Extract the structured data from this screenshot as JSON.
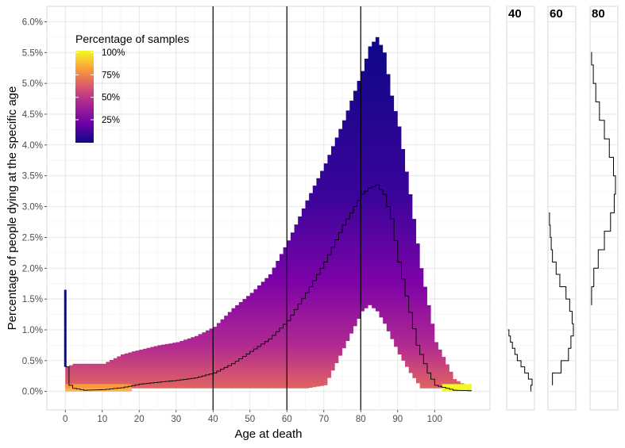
{
  "chart_data": [
    {
      "type": "heatmap",
      "title": "",
      "xlabel": "Age at death",
      "ylabel": "Percentage of people dying at the specific age",
      "xlim": [
        -5,
        115
      ],
      "ylim": [
        -0.3,
        6.25
      ],
      "x_ticks": [
        0,
        10,
        20,
        30,
        40,
        50,
        60,
        70,
        80,
        90,
        100
      ],
      "x_tick_labels": [
        "0",
        "10",
        "20",
        "30",
        "40",
        "50",
        "60",
        "70",
        "80",
        "90",
        "100"
      ],
      "y_ticks": [
        0,
        0.5,
        1,
        1.5,
        2,
        2.5,
        3,
        3.5,
        4,
        4.5,
        5,
        5.5,
        6
      ],
      "y_tick_labels": [
        "0.0%",
        "0.5%",
        "1.0%",
        "1.5%",
        "2.0%",
        "2.5%",
        "3.0%",
        "3.5%",
        "4.0%",
        "4.5%",
        "5.0%",
        "5.5%",
        "6.0%"
      ],
      "vertical_lines": [
        40,
        60,
        80
      ],
      "grid": true,
      "legend": {
        "title": "Percentage of samples",
        "placement": "top-left",
        "labels": [
          "100%",
          "75%",
          "50%",
          "25%"
        ],
        "colors": [
          "#0d0887",
          "#6a00a8",
          "#b12a90",
          "#e16462",
          "#fca636",
          "#f0f921"
        ]
      },
      "envelope": {
        "x": [
          0,
          2,
          10,
          15,
          18,
          25,
          30,
          35,
          40,
          45,
          50,
          55,
          60,
          65,
          70,
          75,
          80,
          82,
          84,
          86,
          88,
          90,
          93,
          96,
          100,
          105,
          108
        ],
        "upper": [
          0.4,
          0.45,
          0.45,
          0.6,
          0.65,
          0.75,
          0.8,
          0.9,
          1.05,
          1.35,
          1.6,
          1.9,
          2.45,
          3.1,
          3.7,
          4.4,
          5.2,
          5.6,
          5.75,
          5.5,
          4.8,
          4.3,
          3.2,
          2.0,
          0.8,
          0.2,
          0.1
        ],
        "lower": [
          0.05,
          0.05,
          0.05,
          0.05,
          0.05,
          0.05,
          0.05,
          0.05,
          0.05,
          0.05,
          0.05,
          0.05,
          0.05,
          0.05,
          0.1,
          0.7,
          1.3,
          1.4,
          1.3,
          1.1,
          0.85,
          0.6,
          0.3,
          0.05,
          0.05,
          0.05,
          0.05
        ],
        "spike": {
          "x": 0,
          "value": 1.65
        }
      },
      "series": [
        {
          "x": [
            0,
            1,
            2,
            5,
            10,
            15,
            20,
            25,
            30,
            35,
            40,
            45,
            50,
            55,
            60,
            65,
            70,
            75,
            78,
            80,
            82,
            84,
            86,
            88,
            90,
            92,
            95,
            98,
            100,
            105,
            110
          ],
          "values": [
            0.4,
            0.1,
            0.05,
            0.02,
            0.03,
            0.06,
            0.12,
            0.15,
            0.18,
            0.22,
            0.3,
            0.45,
            0.65,
            0.85,
            1.15,
            1.6,
            2.1,
            2.7,
            3.0,
            3.2,
            3.3,
            3.35,
            3.2,
            2.8,
            2.1,
            1.55,
            0.75,
            0.3,
            0.1,
            0.02,
            0.01
          ]
        }
      ]
    },
    {
      "type": "line",
      "title": "40",
      "orientation": "horizontal-density",
      "ylim": [
        -0.3,
        6.25
      ],
      "y": [
        0.0,
        0.1,
        0.2,
        0.3,
        0.4,
        0.5,
        0.6,
        0.7,
        0.8,
        0.9,
        1.0
      ],
      "values": [
        0.95,
        1.0,
        0.85,
        0.7,
        0.55,
        0.4,
        0.3,
        0.2,
        0.12,
        0.06,
        0.02
      ]
    },
    {
      "type": "line",
      "title": "60",
      "orientation": "horizontal-density",
      "ylim": [
        -0.3,
        6.25
      ],
      "y": [
        0.1,
        0.3,
        0.5,
        0.7,
        0.9,
        1.1,
        1.3,
        1.5,
        1.7,
        1.9,
        2.1,
        2.3,
        2.5,
        2.7,
        2.9
      ],
      "values": [
        0.15,
        0.5,
        0.8,
        0.9,
        1.0,
        0.95,
        0.85,
        0.7,
        0.45,
        0.3,
        0.15,
        0.1,
        0.06,
        0.03,
        0.01
      ]
    },
    {
      "type": "line",
      "title": "80",
      "orientation": "horizontal-density",
      "ylim": [
        -0.3,
        6.25
      ],
      "y": [
        1.4,
        1.7,
        2.0,
        2.3,
        2.6,
        2.9,
        3.2,
        3.5,
        3.8,
        4.1,
        4.4,
        4.7,
        5.0,
        5.3,
        5.5
      ],
      "values": [
        0.03,
        0.12,
        0.3,
        0.55,
        0.8,
        0.95,
        1.0,
        0.92,
        0.75,
        0.55,
        0.35,
        0.2,
        0.1,
        0.03,
        0.01
      ]
    }
  ]
}
